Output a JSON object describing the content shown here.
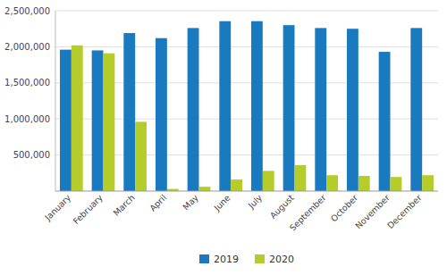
{
  "chart_data": {
    "type": "bar",
    "categories": [
      "January",
      "February",
      "March",
      "April",
      "May",
      "June",
      "July",
      "August",
      "September",
      "October",
      "November",
      "December"
    ],
    "series": [
      {
        "name": "2019",
        "color": "#1a7abf",
        "values": [
          1960000,
          1950000,
          2190000,
          2120000,
          2260000,
          2355000,
          2355000,
          2300000,
          2260000,
          2250000,
          1930000,
          2260000
        ]
      },
      {
        "name": "2020",
        "color": "#b5cc2a",
        "values": [
          2020000,
          1910000,
          960000,
          30000,
          60000,
          160000,
          280000,
          360000,
          220000,
          210000,
          195000,
          220000
        ]
      }
    ],
    "ylim": [
      0,
      2500000
    ],
    "yticks": [
      {
        "value": 500000,
        "label": "500,000"
      },
      {
        "value": 1000000,
        "label": "1,000,000"
      },
      {
        "value": 1500000,
        "label": "1,500,000"
      },
      {
        "value": 2000000,
        "label": "2,000,000"
      },
      {
        "value": 2500000,
        "label": "2,500,000"
      }
    ],
    "grid": true,
    "legend": "bottom"
  }
}
